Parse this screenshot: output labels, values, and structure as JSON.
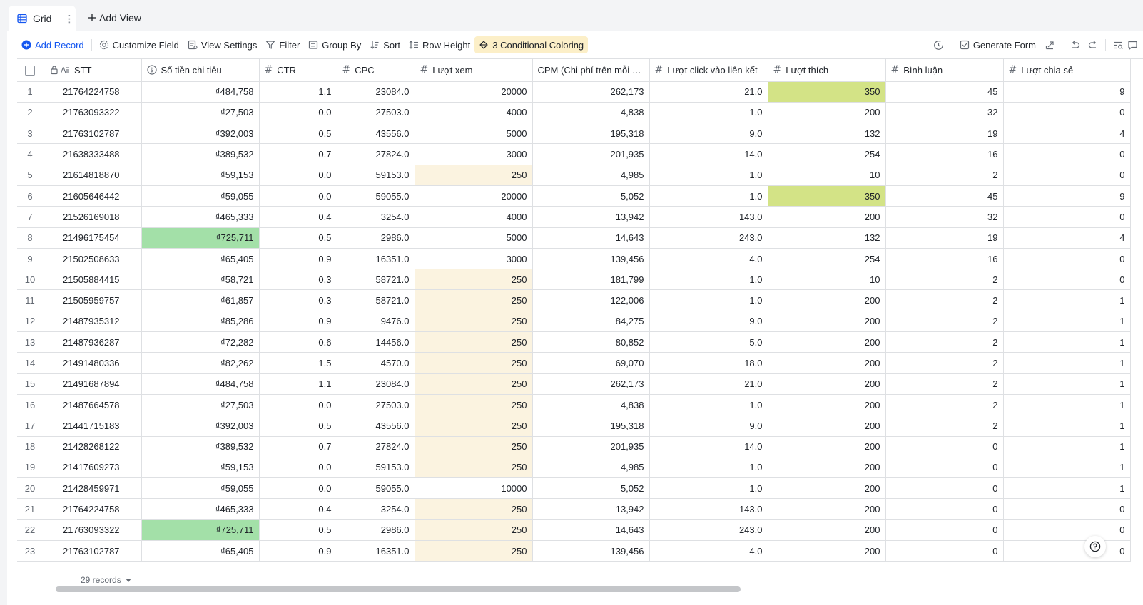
{
  "view_tabs": {
    "active_tab": "Grid",
    "add_view_label": "Add View"
  },
  "toolbar": {
    "add_record": "Add Record",
    "customize_field": "Customize Field",
    "view_settings": "View Settings",
    "filter": "Filter",
    "group_by": "Group By",
    "sort": "Sort",
    "row_height": "Row Height",
    "conditional_coloring": "3 Conditional Coloring",
    "generate_form": "Generate Form"
  },
  "columns": [
    {
      "key": "stt",
      "label": "STT",
      "icon": "text-lock-icon"
    },
    {
      "key": "spend",
      "label": "Số tiền chi tiêu",
      "icon": "currency-icon"
    },
    {
      "key": "ctr",
      "label": "CTR",
      "icon": "number-icon"
    },
    {
      "key": "cpc",
      "label": "CPC",
      "icon": "number-icon"
    },
    {
      "key": "views",
      "label": "Lượt xem",
      "icon": "number-icon"
    },
    {
      "key": "cpm",
      "label": "CPM (Chi phí trên mỗi 1...",
      "icon": "none"
    },
    {
      "key": "clicks",
      "label": "Lượt click vào liên kết",
      "icon": "number-icon"
    },
    {
      "key": "likes",
      "label": "Lượt thích",
      "icon": "number-icon"
    },
    {
      "key": "comments",
      "label": "Bình luận",
      "icon": "number-icon"
    },
    {
      "key": "shares",
      "label": "Lượt chia sẻ",
      "icon": "number-icon"
    }
  ],
  "rows": [
    {
      "n": "1",
      "stt": "21764224758",
      "spend": "₫484,758",
      "ctr": "1.1",
      "cpc": "23084.0",
      "views": "20000",
      "cpm": "262,173",
      "clicks": "21.0",
      "likes": "350",
      "comments": "45",
      "shares": "9"
    },
    {
      "n": "2",
      "stt": "21763093322",
      "spend": "₫27,503",
      "ctr": "0.0",
      "cpc": "27503.0",
      "views": "4000",
      "cpm": "4,838",
      "clicks": "1.0",
      "likes": "200",
      "comments": "32",
      "shares": "0"
    },
    {
      "n": "3",
      "stt": "21763102787",
      "spend": "₫392,003",
      "ctr": "0.5",
      "cpc": "43556.0",
      "views": "5000",
      "cpm": "195,318",
      "clicks": "9.0",
      "likes": "132",
      "comments": "19",
      "shares": "4"
    },
    {
      "n": "4",
      "stt": "21638333488",
      "spend": "₫389,532",
      "ctr": "0.7",
      "cpc": "27824.0",
      "views": "3000",
      "cpm": "201,935",
      "clicks": "14.0",
      "likes": "254",
      "comments": "16",
      "shares": "0"
    },
    {
      "n": "5",
      "stt": "21614818870",
      "spend": "₫59,153",
      "ctr": "0.0",
      "cpc": "59153.0",
      "views": "250",
      "cpm": "4,985",
      "clicks": "1.0",
      "likes": "10",
      "comments": "2",
      "shares": "0"
    },
    {
      "n": "6",
      "stt": "21605646442",
      "spend": "₫59,055",
      "ctr": "0.0",
      "cpc": "59055.0",
      "views": "20000",
      "cpm": "5,052",
      "clicks": "1.0",
      "likes": "350",
      "comments": "45",
      "shares": "9"
    },
    {
      "n": "7",
      "stt": "21526169018",
      "spend": "₫465,333",
      "ctr": "0.4",
      "cpc": "3254.0",
      "views": "4000",
      "cpm": "13,942",
      "clicks": "143.0",
      "likes": "200",
      "comments": "32",
      "shares": "0"
    },
    {
      "n": "8",
      "stt": "21496175454",
      "spend": "₫725,711",
      "ctr": "0.5",
      "cpc": "2986.0",
      "views": "5000",
      "cpm": "14,643",
      "clicks": "243.0",
      "likes": "132",
      "comments": "19",
      "shares": "4"
    },
    {
      "n": "9",
      "stt": "21502508633",
      "spend": "₫65,405",
      "ctr": "0.9",
      "cpc": "16351.0",
      "views": "3000",
      "cpm": "139,456",
      "clicks": "4.0",
      "likes": "254",
      "comments": "16",
      "shares": "0"
    },
    {
      "n": "10",
      "stt": "21505884415",
      "spend": "₫58,721",
      "ctr": "0.3",
      "cpc": "58721.0",
      "views": "250",
      "cpm": "181,799",
      "clicks": "1.0",
      "likes": "10",
      "comments": "2",
      "shares": "0"
    },
    {
      "n": "11",
      "stt": "21505959757",
      "spend": "₫61,857",
      "ctr": "0.3",
      "cpc": "58721.0",
      "views": "250",
      "cpm": "122,006",
      "clicks": "1.0",
      "likes": "200",
      "comments": "2",
      "shares": "1"
    },
    {
      "n": "12",
      "stt": "21487935312",
      "spend": "₫85,286",
      "ctr": "0.9",
      "cpc": "9476.0",
      "views": "250",
      "cpm": "84,275",
      "clicks": "9.0",
      "likes": "200",
      "comments": "2",
      "shares": "1"
    },
    {
      "n": "13",
      "stt": "21487936287",
      "spend": "₫72,282",
      "ctr": "0.6",
      "cpc": "14456.0",
      "views": "250",
      "cpm": "80,852",
      "clicks": "5.0",
      "likes": "200",
      "comments": "2",
      "shares": "1"
    },
    {
      "n": "14",
      "stt": "21491480336",
      "spend": "₫82,262",
      "ctr": "1.5",
      "cpc": "4570.0",
      "views": "250",
      "cpm": "69,070",
      "clicks": "18.0",
      "likes": "200",
      "comments": "2",
      "shares": "1"
    },
    {
      "n": "15",
      "stt": "21491687894",
      "spend": "₫484,758",
      "ctr": "1.1",
      "cpc": "23084.0",
      "views": "250",
      "cpm": "262,173",
      "clicks": "21.0",
      "likes": "200",
      "comments": "2",
      "shares": "1"
    },
    {
      "n": "16",
      "stt": "21487664578",
      "spend": "₫27,503",
      "ctr": "0.0",
      "cpc": "27503.0",
      "views": "250",
      "cpm": "4,838",
      "clicks": "1.0",
      "likes": "200",
      "comments": "2",
      "shares": "1"
    },
    {
      "n": "17",
      "stt": "21441715183",
      "spend": "₫392,003",
      "ctr": "0.5",
      "cpc": "43556.0",
      "views": "250",
      "cpm": "195,318",
      "clicks": "9.0",
      "likes": "200",
      "comments": "2",
      "shares": "1"
    },
    {
      "n": "18",
      "stt": "21428268122",
      "spend": "₫389,532",
      "ctr": "0.7",
      "cpc": "27824.0",
      "views": "250",
      "cpm": "201,935",
      "clicks": "14.0",
      "likes": "200",
      "comments": "0",
      "shares": "1"
    },
    {
      "n": "19",
      "stt": "21417609273",
      "spend": "₫59,153",
      "ctr": "0.0",
      "cpc": "59153.0",
      "views": "250",
      "cpm": "4,985",
      "clicks": "1.0",
      "likes": "200",
      "comments": "0",
      "shares": "1"
    },
    {
      "n": "20",
      "stt": "21428459971",
      "spend": "₫59,055",
      "ctr": "0.0",
      "cpc": "59055.0",
      "views": "10000",
      "cpm": "5,052",
      "clicks": "1.0",
      "likes": "200",
      "comments": "0",
      "shares": "1"
    },
    {
      "n": "21",
      "stt": "21764224758",
      "spend": "₫465,333",
      "ctr": "0.4",
      "cpc": "3254.0",
      "views": "250",
      "cpm": "13,942",
      "clicks": "143.0",
      "likes": "200",
      "comments": "0",
      "shares": "0"
    },
    {
      "n": "22",
      "stt": "21763093322",
      "spend": "₫725,711",
      "ctr": "0.5",
      "cpc": "2986.0",
      "views": "250",
      "cpm": "14,643",
      "clicks": "243.0",
      "likes": "200",
      "comments": "0",
      "shares": "0"
    },
    {
      "n": "23",
      "stt": "21763102787",
      "spend": "₫65,405",
      "ctr": "0.9",
      "cpc": "16351.0",
      "views": "250",
      "cpm": "139,456",
      "clicks": "4.0",
      "likes": "200",
      "comments": "0",
      "shares": "0"
    }
  ],
  "conditional_colors": {
    "spend_max": "#a3e0a8",
    "likes_max": "#d3e386",
    "views_min": "#fbf3e0"
  },
  "footer": {
    "records_label": "29 records"
  },
  "colors": {
    "accent": "#1456f0",
    "coloring_active_bg": "#fcefc8"
  }
}
